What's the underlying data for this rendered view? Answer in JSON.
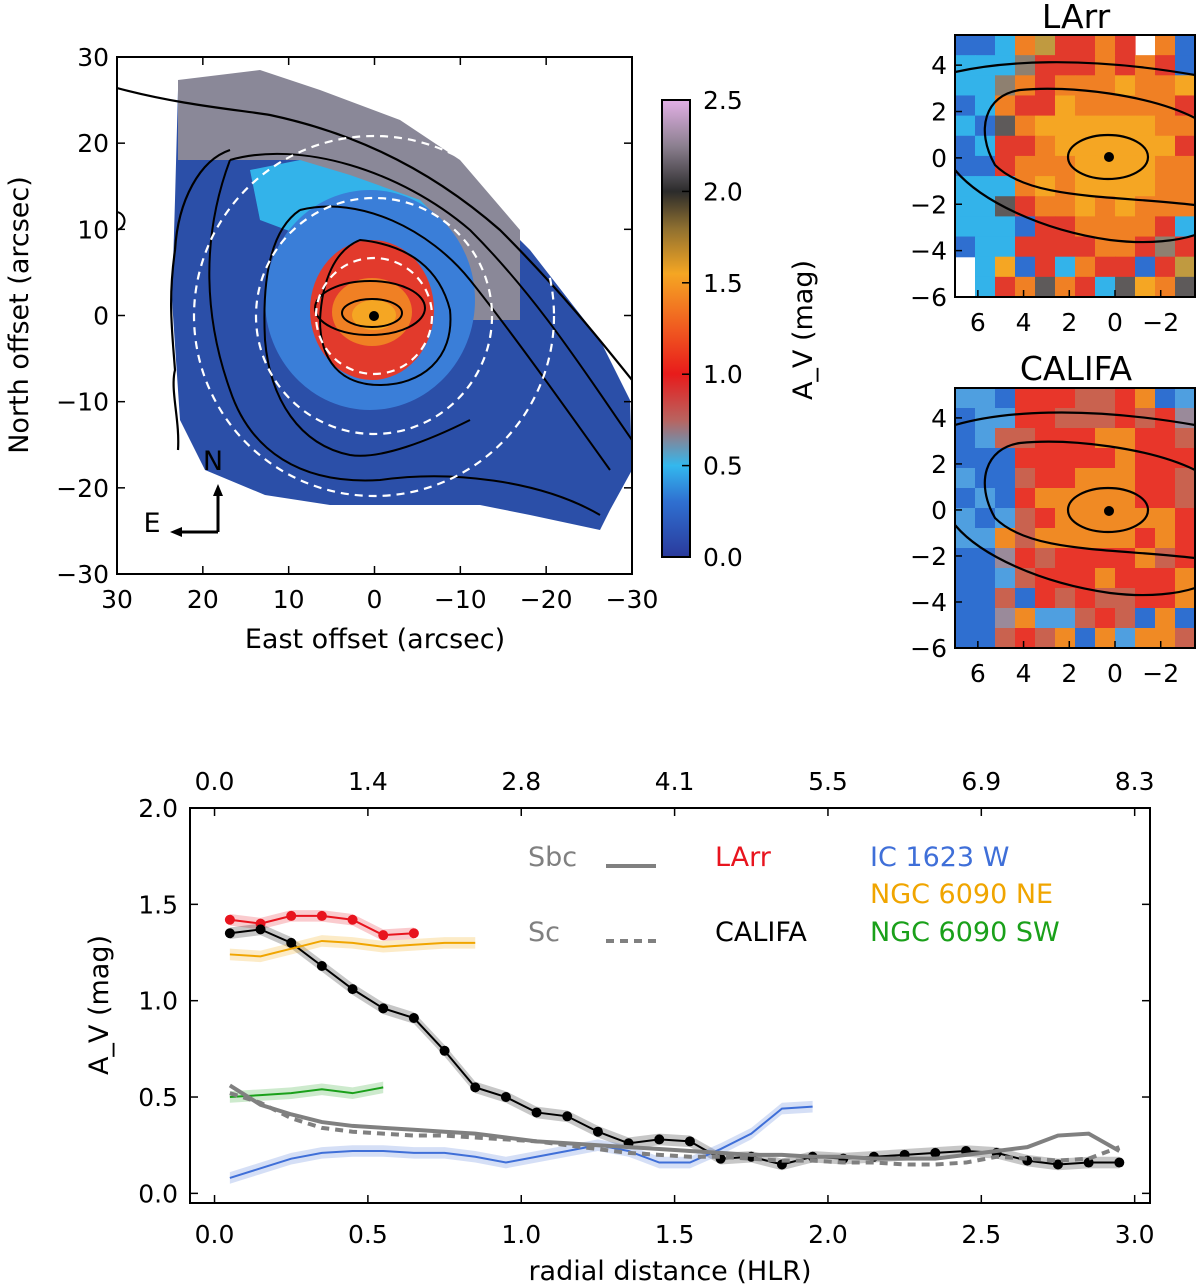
{
  "chart_data": [
    {
      "type": "heatmap",
      "panel": "main-map",
      "xlabel": "East offset (arcsec)",
      "ylabel": "North offset (arcsec)",
      "xlim": [
        30,
        -30
      ],
      "ylim": [
        -30,
        30
      ],
      "xticks": [
        "30",
        "20",
        "10",
        "0",
        "−10",
        "−20",
        "−30"
      ],
      "yticks": [
        "30",
        "20",
        "10",
        "0",
        "−10",
        "−20",
        "−30"
      ],
      "colorbar": {
        "label": "A_V (mag)",
        "range": [
          0.0,
          2.5
        ],
        "ticks": [
          "0.0",
          "0.5",
          "1.0",
          "1.5",
          "2.0",
          "2.5"
        ]
      },
      "compass": {
        "north": "N",
        "east": "E"
      },
      "dashed_circles_arcsec": [
        7,
        14,
        21
      ]
    },
    {
      "type": "heatmap",
      "panel": "inset-larr",
      "title": "LArr",
      "xlim": [
        7,
        -3.5
      ],
      "ylim": [
        -6,
        5.3
      ],
      "xticks": [
        "6",
        "4",
        "2",
        "0",
        "−2"
      ],
      "yticks": [
        "4",
        "2",
        "0",
        "−2",
        "−4",
        "−6"
      ]
    },
    {
      "type": "heatmap",
      "panel": "inset-califa",
      "title": "CALIFA",
      "xlim": [
        7,
        -3.5
      ],
      "ylim": [
        -6,
        5.3
      ],
      "xticks": [
        "6",
        "4",
        "2",
        "0",
        "−2"
      ],
      "yticks": [
        "4",
        "2",
        "0",
        "−2",
        "−4",
        "−6"
      ]
    },
    {
      "type": "line",
      "panel": "radial-profile",
      "xlabel": "radial distance (HLR)",
      "ylabel": "A_V (mag)",
      "xlim": [
        -0.08,
        3.05
      ],
      "ylim": [
        -0.05,
        2.0
      ],
      "xticks": [
        "0.0",
        "0.5",
        "1.0",
        "1.5",
        "2.0",
        "2.5",
        "3.0"
      ],
      "yticks": [
        "0.0",
        "0.5",
        "1.0",
        "1.5",
        "2.0"
      ],
      "top_xticks": [
        "0.0",
        "1.4",
        "2.8",
        "4.1",
        "5.5",
        "6.9",
        "8.3"
      ],
      "legend": {
        "sbc": "Sbc",
        "sc": "Sc",
        "larr": "LArr",
        "califa": "CALIFA",
        "ic1623": "IC 1623 W",
        "ngc6090ne": "NGC 6090 NE",
        "ngc6090sw": "NGC 6090 SW"
      },
      "series": [
        {
          "name": "LArr",
          "color": "#e8141e",
          "x": [
            0.05,
            0.15,
            0.25,
            0.35,
            0.45,
            0.55,
            0.65
          ],
          "y": [
            1.42,
            1.4,
            1.44,
            1.44,
            1.42,
            1.34,
            1.35
          ]
        },
        {
          "name": "CALIFA",
          "color": "#000000",
          "x": [
            0.05,
            0.15,
            0.25,
            0.35,
            0.45,
            0.55,
            0.65,
            0.75,
            0.85,
            0.95,
            1.05,
            1.15,
            1.25,
            1.35,
            1.45,
            1.55,
            1.65,
            1.75,
            1.85,
            1.95,
            2.05,
            2.15,
            2.25,
            2.35,
            2.45,
            2.55,
            2.65,
            2.75,
            2.85,
            2.95
          ],
          "y": [
            1.35,
            1.37,
            1.3,
            1.18,
            1.06,
            0.96,
            0.91,
            0.74,
            0.55,
            0.5,
            0.42,
            0.4,
            0.32,
            0.26,
            0.28,
            0.27,
            0.18,
            0.19,
            0.15,
            0.19,
            0.18,
            0.19,
            0.2,
            0.21,
            0.22,
            0.21,
            0.17,
            0.15,
            0.16,
            0.16
          ]
        },
        {
          "name": "IC 1623 W",
          "color": "#3f6fd8",
          "x": [
            0.05,
            0.15,
            0.25,
            0.35,
            0.45,
            0.55,
            0.65,
            0.75,
            0.85,
            0.95,
            1.05,
            1.15,
            1.25,
            1.35,
            1.45,
            1.55,
            1.65,
            1.75,
            1.85,
            1.95
          ],
          "y": [
            0.08,
            0.13,
            0.18,
            0.21,
            0.22,
            0.22,
            0.21,
            0.21,
            0.19,
            0.16,
            0.19,
            0.22,
            0.25,
            0.22,
            0.16,
            0.16,
            0.23,
            0.31,
            0.44,
            0.45
          ]
        },
        {
          "name": "NGC 6090 NE",
          "color": "#f0a500",
          "x": [
            0.05,
            0.15,
            0.25,
            0.35,
            0.45,
            0.55,
            0.65,
            0.75,
            0.85
          ],
          "y": [
            1.24,
            1.23,
            1.27,
            1.31,
            1.3,
            1.28,
            1.29,
            1.3,
            1.3
          ]
        },
        {
          "name": "NGC 6090 SW",
          "color": "#1aa01a",
          "x": [
            0.05,
            0.15,
            0.25,
            0.35,
            0.45,
            0.55
          ],
          "y": [
            0.5,
            0.51,
            0.52,
            0.54,
            0.52,
            0.55
          ]
        },
        {
          "name": "Sbc",
          "color": "#808080",
          "x": [
            0.05,
            0.15,
            0.25,
            0.35,
            0.45,
            0.55,
            0.65,
            0.75,
            0.85,
            0.95,
            1.05,
            1.15,
            1.25,
            1.35,
            1.45,
            1.55,
            1.65,
            1.75,
            1.85,
            1.95,
            2.05,
            2.15,
            2.25,
            2.35,
            2.45,
            2.55,
            2.65,
            2.75,
            2.85,
            2.95
          ],
          "y": [
            0.56,
            0.46,
            0.41,
            0.37,
            0.35,
            0.34,
            0.33,
            0.32,
            0.31,
            0.29,
            0.27,
            0.26,
            0.25,
            0.24,
            0.23,
            0.22,
            0.21,
            0.2,
            0.2,
            0.19,
            0.19,
            0.18,
            0.18,
            0.18,
            0.2,
            0.22,
            0.24,
            0.3,
            0.31,
            0.22
          ]
        },
        {
          "name": "Sc",
          "color": "#808080",
          "dashed": true,
          "x": [
            0.05,
            0.15,
            0.25,
            0.35,
            0.45,
            0.55,
            0.65,
            0.75,
            0.85,
            0.95,
            1.05,
            1.15,
            1.25,
            1.35,
            1.45,
            1.55,
            1.65,
            1.75,
            1.85,
            1.95,
            2.05,
            2.15,
            2.25,
            2.35,
            2.45,
            2.55,
            2.65,
            2.75,
            2.85,
            2.95
          ],
          "y": [
            0.52,
            0.47,
            0.39,
            0.34,
            0.32,
            0.31,
            0.3,
            0.3,
            0.29,
            0.28,
            0.27,
            0.25,
            0.23,
            0.21,
            0.2,
            0.19,
            0.19,
            0.18,
            0.17,
            0.17,
            0.16,
            0.16,
            0.15,
            0.15,
            0.16,
            0.19,
            0.18,
            0.17,
            0.18,
            0.24
          ]
        }
      ]
    }
  ]
}
